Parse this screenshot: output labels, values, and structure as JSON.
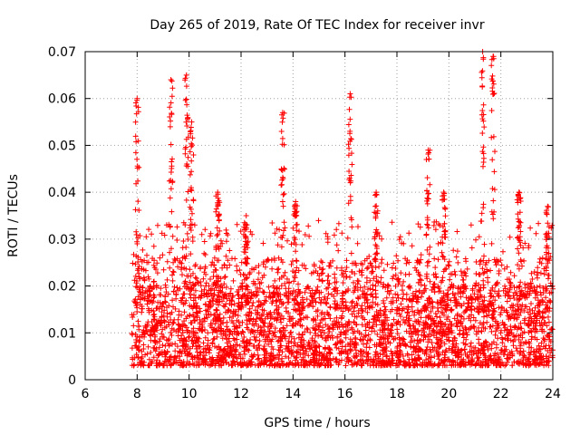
{
  "chart_data": {
    "type": "scatter",
    "title": "Day 265 of 2019, Rate Of TEC Index for receiver invr",
    "xlabel": "GPS time / hours",
    "ylabel": "ROTI / TECUs",
    "xlim": [
      6,
      24
    ],
    "ylim": [
      0,
      0.07
    ],
    "xticks": [
      6,
      8,
      10,
      12,
      14,
      16,
      18,
      20,
      22,
      24
    ],
    "xtick_labels": [
      "6",
      "8",
      "10",
      "12",
      "14",
      "16",
      "18",
      "20",
      "22",
      "24"
    ],
    "yticks": [
      0,
      0.01,
      0.02,
      0.03,
      0.04,
      0.05,
      0.06,
      0.07
    ],
    "ytick_labels": [
      "0",
      "0.01",
      "0.02",
      "0.03",
      "0.04",
      "0.05",
      "0.06",
      "0.07"
    ],
    "grid": true,
    "marker": "+",
    "color": "#ff0000",
    "data_start_hour": 7.8,
    "data_end_hour": 24,
    "typical_range": [
      0.003,
      0.02
    ],
    "series": [
      {
        "name": "ROTI",
        "spikes": [
          {
            "x": 8.0,
            "y": 0.06
          },
          {
            "x": 9.3,
            "y": 0.064
          },
          {
            "x": 9.9,
            "y": 0.065
          },
          {
            "x": 10.1,
            "y": 0.055
          },
          {
            "x": 11.1,
            "y": 0.04
          },
          {
            "x": 12.2,
            "y": 0.035
          },
          {
            "x": 13.6,
            "y": 0.057
          },
          {
            "x": 14.1,
            "y": 0.038
          },
          {
            "x": 16.2,
            "y": 0.061
          },
          {
            "x": 17.2,
            "y": 0.04
          },
          {
            "x": 19.2,
            "y": 0.049
          },
          {
            "x": 19.8,
            "y": 0.04
          },
          {
            "x": 21.3,
            "y": 0.07
          },
          {
            "x": 21.7,
            "y": 0.069
          },
          {
            "x": 22.7,
            "y": 0.04
          },
          {
            "x": 23.8,
            "y": 0.037
          }
        ]
      }
    ]
  }
}
